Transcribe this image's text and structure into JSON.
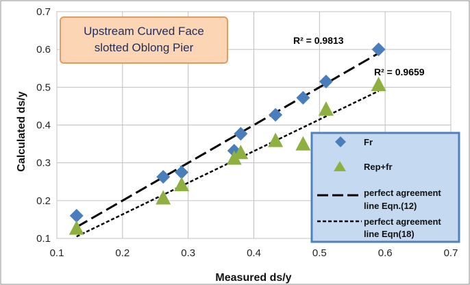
{
  "chart_data": {
    "type": "scatter",
    "title": "Upstream Curved Face slotted Oblong Pier",
    "title_lines": [
      "Upstream Curved Face",
      "slotted Oblong Pier"
    ],
    "xlabel": "Measured ds/y",
    "ylabel": "Calculated  ds/y",
    "xlim": [
      0.1,
      0.7
    ],
    "ylim": [
      0.1,
      0.7
    ],
    "xticks": [
      0.1,
      0.2,
      0.3,
      0.4,
      0.5,
      0.6,
      0.7
    ],
    "yticks": [
      0.1,
      0.2,
      0.3,
      0.4,
      0.5,
      0.6,
      0.7
    ],
    "grid": true,
    "legend_position": "lower-right",
    "series": [
      {
        "name": "Fr",
        "marker": "diamond",
        "color": "#4a7ebb",
        "x": [
          0.13,
          0.262,
          0.29,
          0.37,
          0.38,
          0.433,
          0.475,
          0.51,
          0.59
        ],
        "y": [
          0.16,
          0.263,
          0.275,
          0.332,
          0.377,
          0.427,
          0.472,
          0.515,
          0.6
        ]
      },
      {
        "name": "Rep+fr",
        "marker": "triangle",
        "color": "#8db040",
        "x": [
          0.13,
          0.262,
          0.29,
          0.37,
          0.38,
          0.433,
          0.475,
          0.51,
          0.59
        ],
        "y": [
          0.125,
          0.205,
          0.24,
          0.31,
          0.325,
          0.357,
          0.348,
          0.44,
          0.505
        ]
      }
    ],
    "lines": [
      {
        "name_lines": [
          "perfect agreement",
          "line Eqn.(12)"
        ],
        "style": "long-dash",
        "x": [
          0.13,
          0.59
        ],
        "y": [
          0.13,
          0.59
        ],
        "r2": "R² = 0.9813"
      },
      {
        "name_lines": [
          "perfect agreement",
          "line  Eqn(18)"
        ],
        "style": "short-dash",
        "x": [
          0.13,
          0.59
        ],
        "y": [
          0.105,
          0.49
        ],
        "r2": "R² = 0.9659"
      }
    ],
    "colors": {
      "title_box_fill": "#fcd5b4",
      "title_box_border": "#e49b5f",
      "legend_fill": "#c5d9f1",
      "legend_border": "#4f81bd",
      "grid": "#c0c0c0"
    }
  }
}
